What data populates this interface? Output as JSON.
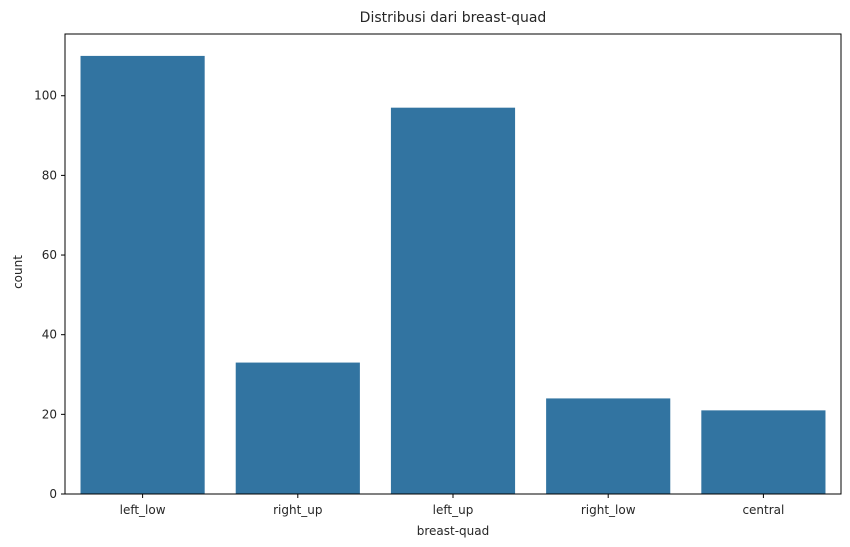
{
  "chart_data": {
    "type": "bar",
    "title": "Distribusi dari breast-quad",
    "xlabel": "breast-quad",
    "ylabel": "count",
    "categories": [
      "left_low",
      "right_up",
      "left_up",
      "right_low",
      "central"
    ],
    "values": [
      110,
      33,
      97,
      24,
      21
    ],
    "ylim": [
      0,
      115.5
    ],
    "yticks": [
      0,
      20,
      40,
      60,
      80,
      100
    ],
    "bar_color": "#3274a1",
    "grid": false,
    "legend": "none"
  }
}
